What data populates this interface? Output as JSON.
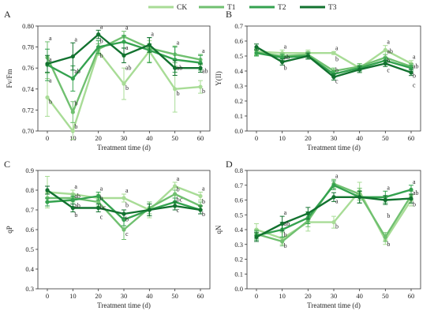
{
  "legend": [
    {
      "name": "CK",
      "color": "#a8dc96"
    },
    {
      "name": "T1",
      "color": "#70c070"
    },
    {
      "name": "T2",
      "color": "#34a24f"
    },
    {
      "name": "T3",
      "color": "#12722f"
    }
  ],
  "chart_data": [
    {
      "type": "line",
      "panel": "A",
      "xlabel": "Treatment time (d)",
      "ylabel": "Fv/Fm",
      "x": [
        0,
        10,
        20,
        30,
        40,
        50,
        60
      ],
      "xlim": [
        0,
        60
      ],
      "ylim": [
        0.7,
        0.8
      ],
      "yticks": [
        "0.70",
        "0.72",
        "0.74",
        "0.76",
        "0.78",
        "0.80"
      ],
      "grid": false,
      "series": [
        {
          "name": "CK",
          "values": [
            0.732,
            0.7,
            0.776,
            0.745,
            0.776,
            0.74,
            0.742
          ],
          "errors": [
            0.018,
            0.008,
            0.004,
            0.015,
            0.01,
            0.022,
            0.006
          ]
        },
        {
          "name": "T1",
          "values": [
            0.77,
            0.718,
            0.778,
            0.79,
            0.779,
            0.773,
            0.768
          ],
          "errors": [
            0.015,
            0.01,
            0.005,
            0.005,
            0.004,
            0.008,
            0.005
          ]
        },
        {
          "name": "T2",
          "values": [
            0.763,
            0.75,
            0.78,
            0.785,
            0.777,
            0.768,
            0.765
          ],
          "errors": [
            0.015,
            0.012,
            0.006,
            0.006,
            0.012,
            0.012,
            0.007
          ]
        },
        {
          "name": "T3",
          "values": [
            0.764,
            0.771,
            0.792,
            0.772,
            0.782,
            0.76,
            0.76
          ],
          "errors": [
            0.008,
            0.013,
            0.004,
            0.007,
            0.007,
            0.007,
            0.004
          ]
        }
      ],
      "annotations": [
        {
          "x": 0,
          "labels": [
            "a",
            "a",
            "a",
            "b"
          ]
        },
        {
          "x": 10,
          "labels": [
            "a",
            "ab",
            "b",
            "b"
          ]
        },
        {
          "x": 20,
          "labels": [
            "a",
            "b",
            "b"
          ]
        },
        {
          "x": 30,
          "labels": [
            "a",
            "a",
            "ab",
            "b"
          ]
        },
        {
          "x": 40,
          "labels": [
            "a"
          ]
        },
        {
          "x": 50,
          "labels": [
            "a",
            "ab",
            "b"
          ]
        },
        {
          "x": 60,
          "labels": [
            "a",
            "ab",
            "b"
          ]
        }
      ]
    },
    {
      "type": "line",
      "panel": "B",
      "xlabel": "Treatment time (d)",
      "ylabel": "Y(II)",
      "x": [
        0,
        10,
        20,
        30,
        40,
        50,
        60
      ],
      "xlim": [
        0,
        60
      ],
      "ylim": [
        0.0,
        0.7
      ],
      "yticks": [
        "0.0",
        "0.1",
        "0.2",
        "0.3",
        "0.4",
        "0.5",
        "0.6",
        "0.7"
      ],
      "grid": false,
      "series": [
        {
          "name": "CK",
          "values": [
            0.53,
            0.52,
            0.52,
            0.52,
            0.42,
            0.54,
            0.45
          ],
          "errors": [
            0.02,
            0.02,
            0.02,
            0.01,
            0.03,
            0.03,
            0.02
          ]
        },
        {
          "name": "T1",
          "values": [
            0.525,
            0.5,
            0.51,
            0.4,
            0.43,
            0.49,
            0.43
          ],
          "errors": [
            0.02,
            0.02,
            0.02,
            0.02,
            0.02,
            0.02,
            0.02
          ]
        },
        {
          "name": "T2",
          "values": [
            0.52,
            0.49,
            0.5,
            0.38,
            0.42,
            0.47,
            0.42
          ],
          "errors": [
            0.02,
            0.02,
            0.02,
            0.02,
            0.02,
            0.02,
            0.02
          ]
        },
        {
          "name": "T3",
          "values": [
            0.56,
            0.46,
            0.5,
            0.36,
            0.41,
            0.45,
            0.39
          ],
          "errors": [
            0.02,
            0.02,
            0.02,
            0.02,
            0.02,
            0.02,
            0.02
          ]
        }
      ],
      "annotations": [
        {
          "x": 10,
          "labels": [
            "a",
            "ab",
            "b"
          ]
        },
        {
          "x": 30,
          "labels": [
            "a",
            "b",
            "b",
            "c"
          ]
        },
        {
          "x": 50,
          "labels": [
            "a",
            "ab",
            "b",
            "c"
          ]
        },
        {
          "x": 60,
          "labels": [
            "a",
            "ab",
            "b",
            "c"
          ]
        }
      ]
    },
    {
      "type": "line",
      "panel": "C",
      "xlabel": "Treatment time (d)",
      "ylabel": "qP",
      "x": [
        0,
        10,
        20,
        30,
        40,
        50,
        60
      ],
      "xlim": [
        0,
        60
      ],
      "ylim": [
        0.3,
        0.9
      ],
      "yticks": [
        "0.3",
        "0.4",
        "0.5",
        "0.6",
        "0.7",
        "0.8",
        "0.9"
      ],
      "grid": false,
      "series": [
        {
          "name": "CK",
          "values": [
            0.79,
            0.78,
            0.76,
            0.76,
            0.7,
            0.82,
            0.77
          ],
          "errors": [
            0.08,
            0.02,
            0.02,
            0.02,
            0.04,
            0.02,
            0.02
          ]
        },
        {
          "name": "T1",
          "values": [
            0.76,
            0.76,
            0.74,
            0.6,
            0.71,
            0.78,
            0.72
          ],
          "errors": [
            0.02,
            0.02,
            0.02,
            0.05,
            0.03,
            0.02,
            0.02
          ]
        },
        {
          "name": "T2",
          "values": [
            0.74,
            0.75,
            0.77,
            0.65,
            0.7,
            0.74,
            0.7
          ],
          "errors": [
            0.02,
            0.02,
            0.02,
            0.03,
            0.03,
            0.02,
            0.02
          ]
        },
        {
          "name": "T3",
          "values": [
            0.8,
            0.71,
            0.71,
            0.68,
            0.7,
            0.72,
            0.7
          ],
          "errors": [
            0.02,
            0.02,
            0.02,
            0.02,
            0.03,
            0.02,
            0.02
          ]
        }
      ],
      "annotations": [
        {
          "x": 10,
          "labels": [
            "a",
            "ab",
            "ab",
            "b"
          ]
        },
        {
          "x": 20,
          "labels": [
            "a",
            "b",
            "bc",
            "c"
          ]
        },
        {
          "x": 30,
          "labels": [
            "a",
            "b",
            "b",
            "c"
          ]
        },
        {
          "x": 50,
          "labels": [
            "a",
            "b",
            "bc",
            "c"
          ]
        },
        {
          "x": 60,
          "labels": [
            "a",
            "b",
            "b"
          ]
        }
      ]
    },
    {
      "type": "line",
      "panel": "D",
      "xlabel": "Treatment time (d)",
      "ylabel": "qN",
      "x": [
        0,
        10,
        20,
        30,
        40,
        50,
        60
      ],
      "xlim": [
        0,
        60
      ],
      "ylim": [
        0.0,
        0.8
      ],
      "yticks": [
        "0.0",
        "0.1",
        "0.2",
        "0.3",
        "0.4",
        "0.5",
        "0.6",
        "0.7",
        "0.8"
      ],
      "grid": false,
      "series": [
        {
          "name": "CK",
          "values": [
            0.4,
            0.34,
            0.45,
            0.45,
            0.66,
            0.33,
            0.6
          ],
          "errors": [
            0.04,
            0.04,
            0.06,
            0.04,
            0.06,
            0.03,
            0.04
          ]
        },
        {
          "name": "T1",
          "values": [
            0.37,
            0.32,
            0.46,
            0.71,
            0.64,
            0.35,
            0.63
          ],
          "errors": [
            0.03,
            0.03,
            0.04,
            0.03,
            0.04,
            0.03,
            0.03
          ]
        },
        {
          "name": "T2",
          "values": [
            0.36,
            0.4,
            0.48,
            0.7,
            0.62,
            0.62,
            0.67
          ],
          "errors": [
            0.03,
            0.05,
            0.04,
            0.03,
            0.04,
            0.04,
            0.03
          ]
        },
        {
          "name": "T3",
          "values": [
            0.35,
            0.44,
            0.51,
            0.62,
            0.62,
            0.6,
            0.61
          ],
          "errors": [
            0.03,
            0.05,
            0.04,
            0.03,
            0.04,
            0.03,
            0.03
          ]
        }
      ],
      "annotations": [
        {
          "x": 10,
          "labels": [
            "a",
            "ab",
            "b",
            "b"
          ]
        },
        {
          "x": 30,
          "labels": [
            "a",
            "a",
            "b"
          ]
        },
        {
          "x": 50,
          "labels": [
            "a",
            "b",
            "b"
          ]
        },
        {
          "x": 60,
          "labels": [
            "a",
            "ab",
            "b"
          ]
        }
      ]
    }
  ]
}
